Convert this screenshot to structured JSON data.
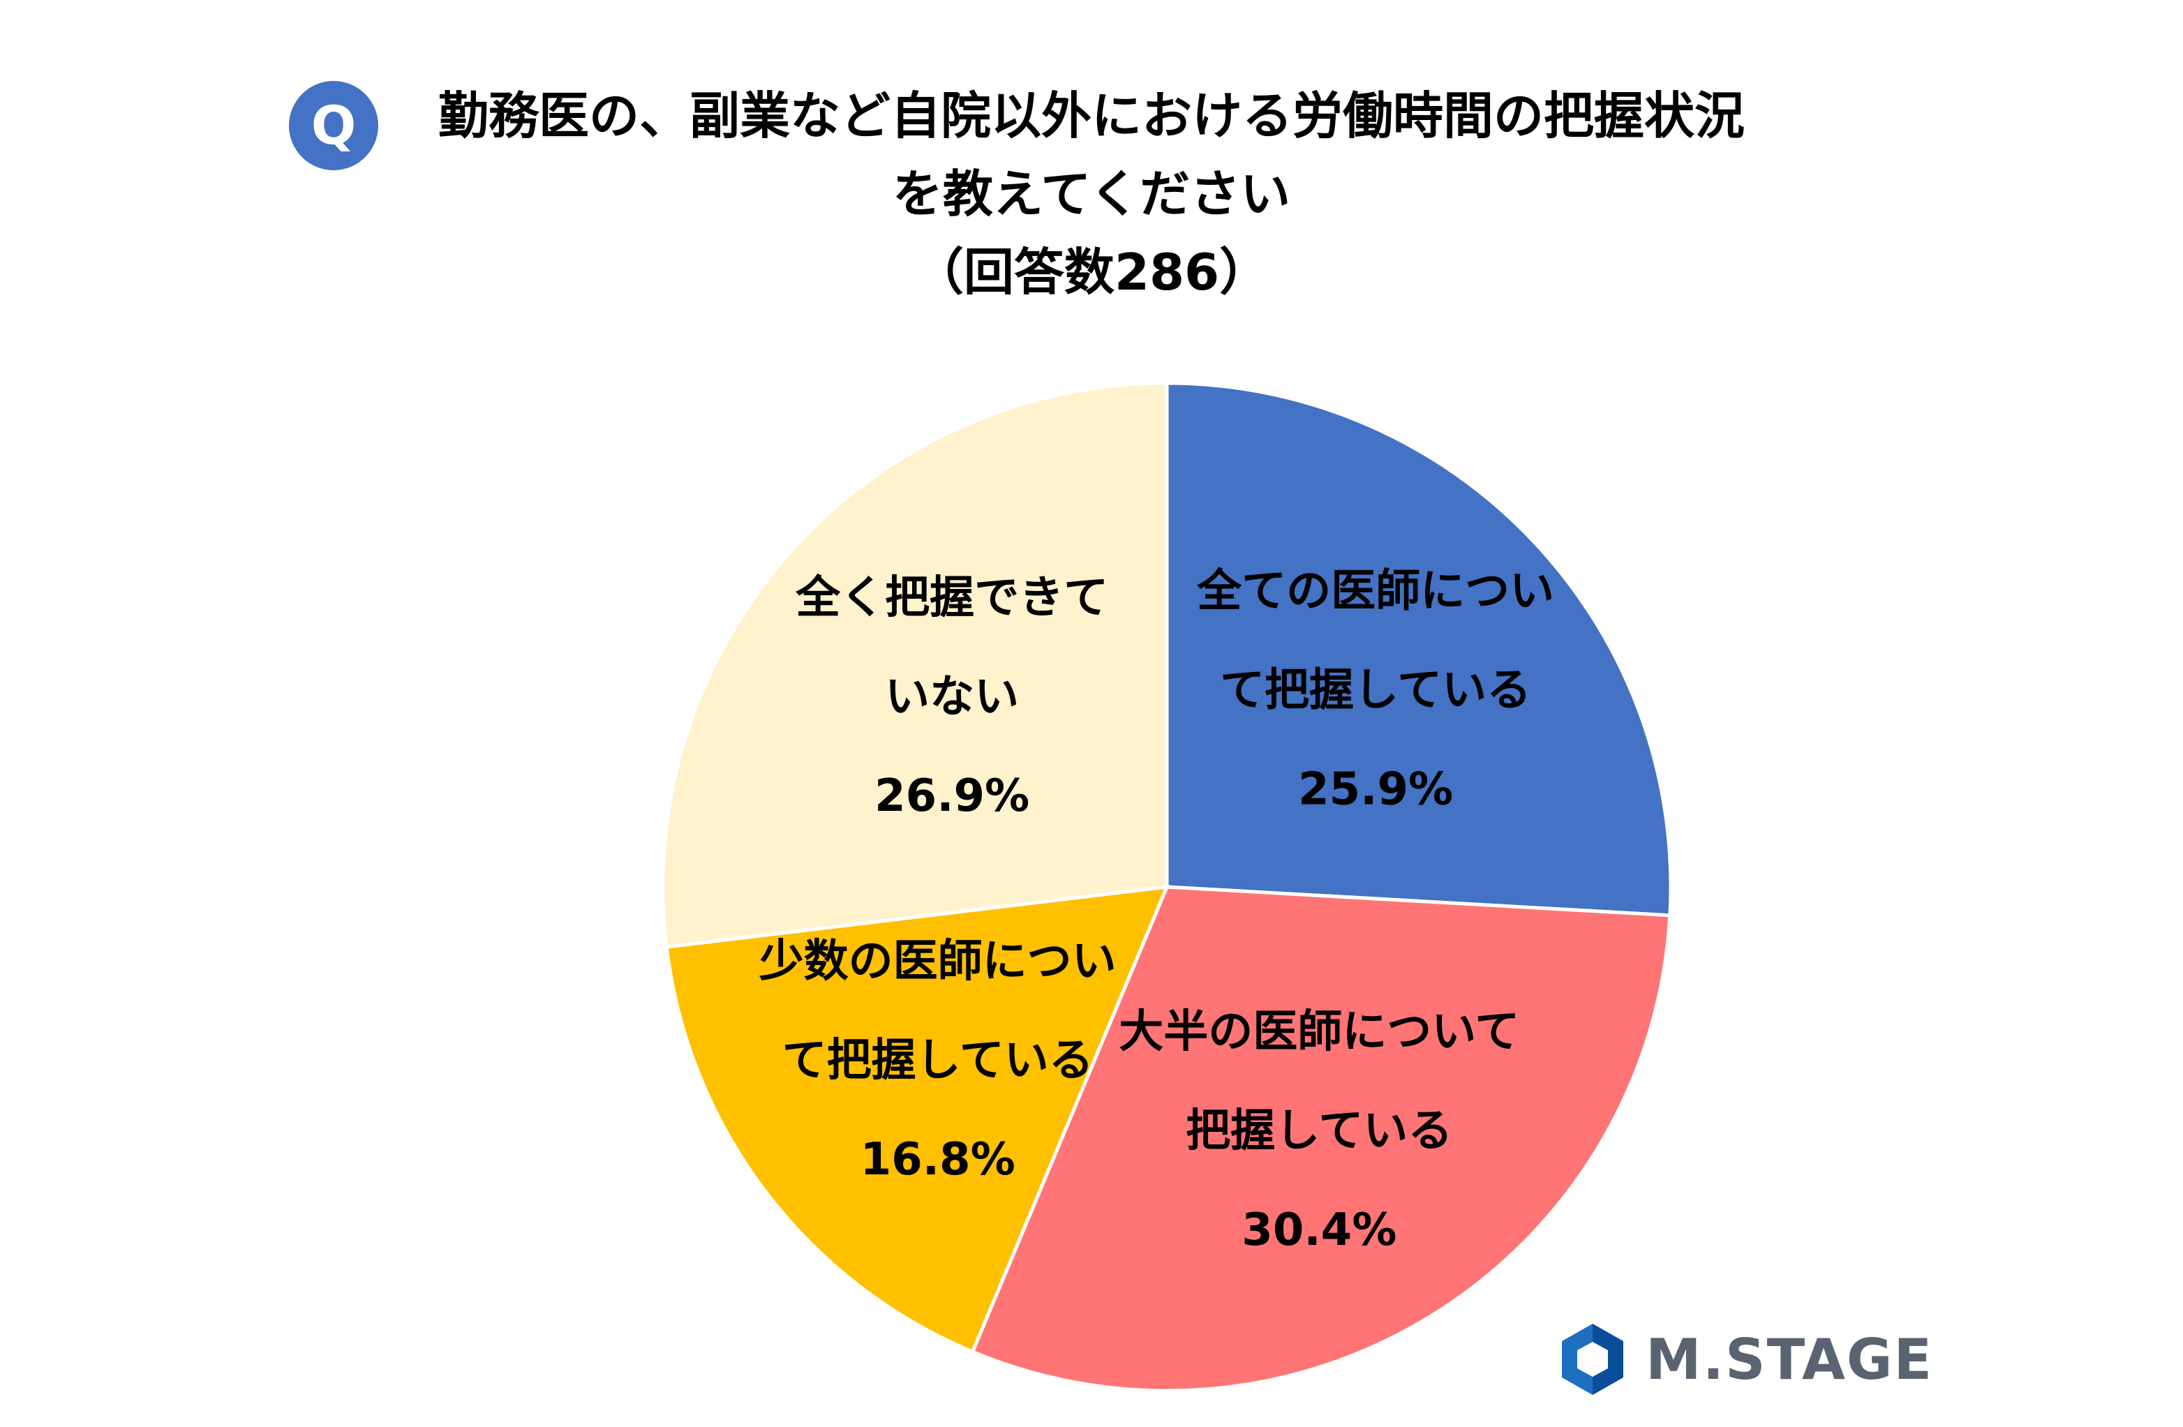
{
  "question_badge": "Q",
  "title_lines": [
    "勤務医の、副業など自院以外における労働時間の把握状況",
    "を教えてください",
    "（回答数286）"
  ],
  "logo": {
    "text": "M.STAGE",
    "icon": "mstage-logo-icon"
  },
  "chart_data": {
    "type": "pie",
    "title": "勤務医の、副業など自院以外における労働時間の把握状況を教えてください（回答数286）",
    "start_angle_deg": 0,
    "direction": "clockwise",
    "slices": [
      {
        "label_lines": [
          "全ての医師につい",
          "て把握している"
        ],
        "percent_label": "25.9%",
        "value": 25.9,
        "color": "#4472C4"
      },
      {
        "label_lines": [
          "大半の医師について",
          "把握している"
        ],
        "percent_label": "30.4%",
        "value": 30.4,
        "color": "#FF7575"
      },
      {
        "label_lines": [
          "少数の医師につい",
          "て把握している"
        ],
        "percent_label": "16.8%",
        "value": 16.8,
        "color": "#FFC000"
      },
      {
        "label_lines": [
          "全く把握できて",
          "いない"
        ],
        "percent_label": "26.9%",
        "value": 26.9,
        "color": "#FFF2CC"
      }
    ]
  }
}
